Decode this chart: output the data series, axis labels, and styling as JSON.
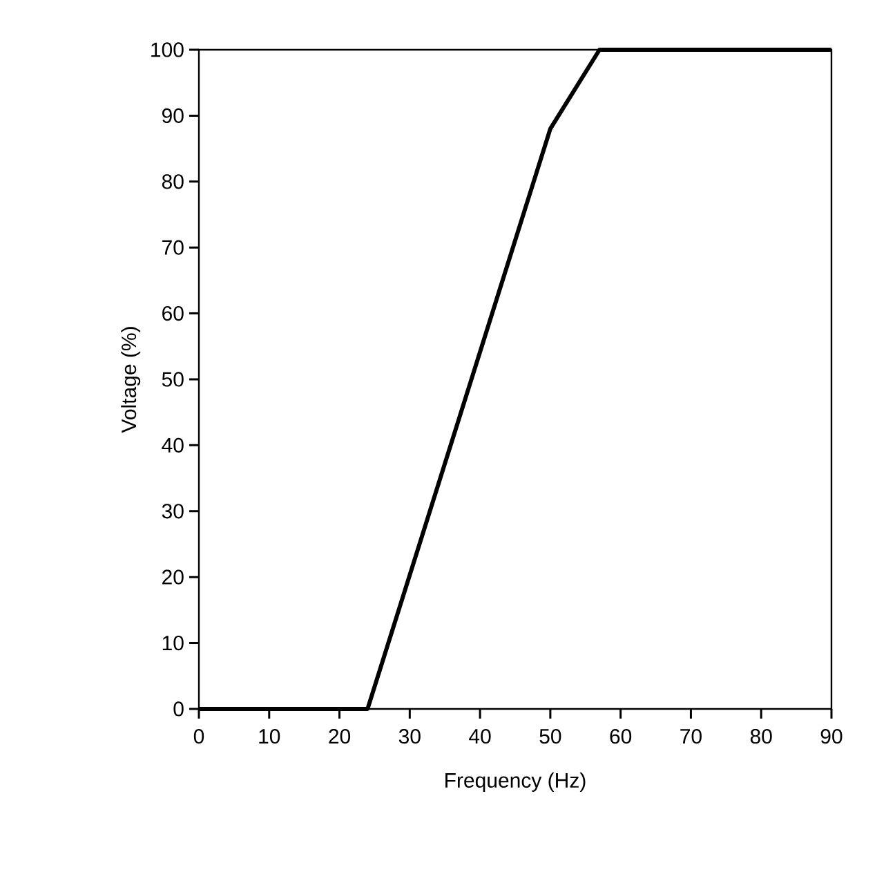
{
  "chart_data": {
    "type": "line",
    "xlabel": "Frequency (Hz)",
    "ylabel": "Voltage (%)",
    "x": [
      0,
      24,
      50,
      57,
      90
    ],
    "series": [
      {
        "color": "#000000",
        "values": [
          0,
          0,
          88,
          100,
          100
        ]
      }
    ],
    "xlim": [
      0,
      90
    ],
    "ylim": [
      0,
      100
    ],
    "xticks": [
      0,
      10,
      20,
      30,
      40,
      50,
      60,
      70,
      80,
      90
    ],
    "yticks": [
      0,
      10,
      20,
      30,
      40,
      50,
      60,
      70,
      80,
      90,
      100
    ],
    "marker": "none",
    "line_style": "solid"
  }
}
